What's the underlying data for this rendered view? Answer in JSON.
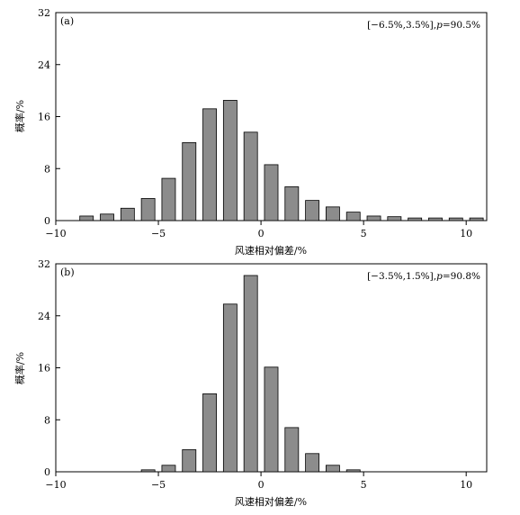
{
  "chart_data": [
    {
      "type": "bar",
      "panel_label": "(a)",
      "annotation": "[−6.5%,3.5%],p=90.5%",
      "annotation_parts": {
        "interval": "[−6.5%,3.5%],",
        "p_var": "p",
        "p_value": "=90.5%"
      },
      "xlabel": "风速相对偏差/%",
      "ylabel": "概率/%",
      "xlim": [
        -10,
        11
      ],
      "ylim": [
        0,
        32
      ],
      "xticks": [
        -10,
        -5,
        0,
        5,
        10
      ],
      "yticks": [
        0,
        8,
        16,
        24,
        32
      ],
      "bar_color": "#8c8c8c",
      "x": [
        -8.5,
        -7.5,
        -6.5,
        -5.5,
        -4.5,
        -3.5,
        -2.5,
        -1.5,
        -0.5,
        0.5,
        1.5,
        2.5,
        3.5,
        4.5,
        5.5,
        6.5,
        7.5,
        8.5,
        9.5,
        10.5
      ],
      "values": [
        0.7,
        1.0,
        1.9,
        3.4,
        6.5,
        12.0,
        17.2,
        18.5,
        13.6,
        8.6,
        5.2,
        3.1,
        2.1,
        1.3,
        0.7,
        0.6,
        0.4,
        0.4,
        0.4,
        0.4
      ]
    },
    {
      "type": "bar",
      "panel_label": "(b)",
      "annotation": "[−3.5%,1.5%],p=90.8%",
      "annotation_parts": {
        "interval": "[−3.5%,1.5%],",
        "p_var": "p",
        "p_value": "=90.8%"
      },
      "xlabel": "风速相对偏差/%",
      "ylabel": "概率/%",
      "xlim": [
        -10,
        11
      ],
      "ylim": [
        0,
        32
      ],
      "xticks": [
        -10,
        -5,
        0,
        5,
        10
      ],
      "yticks": [
        0,
        8,
        16,
        24,
        32
      ],
      "bar_color": "#8c8c8c",
      "x": [
        -5.5,
        -4.5,
        -3.5,
        -2.5,
        -1.5,
        -0.5,
        0.5,
        1.5,
        2.5,
        3.5,
        4.5
      ],
      "values": [
        0.3,
        1.0,
        3.4,
        12.0,
        25.8,
        30.2,
        16.1,
        6.8,
        2.8,
        1.0,
        0.3
      ]
    }
  ]
}
